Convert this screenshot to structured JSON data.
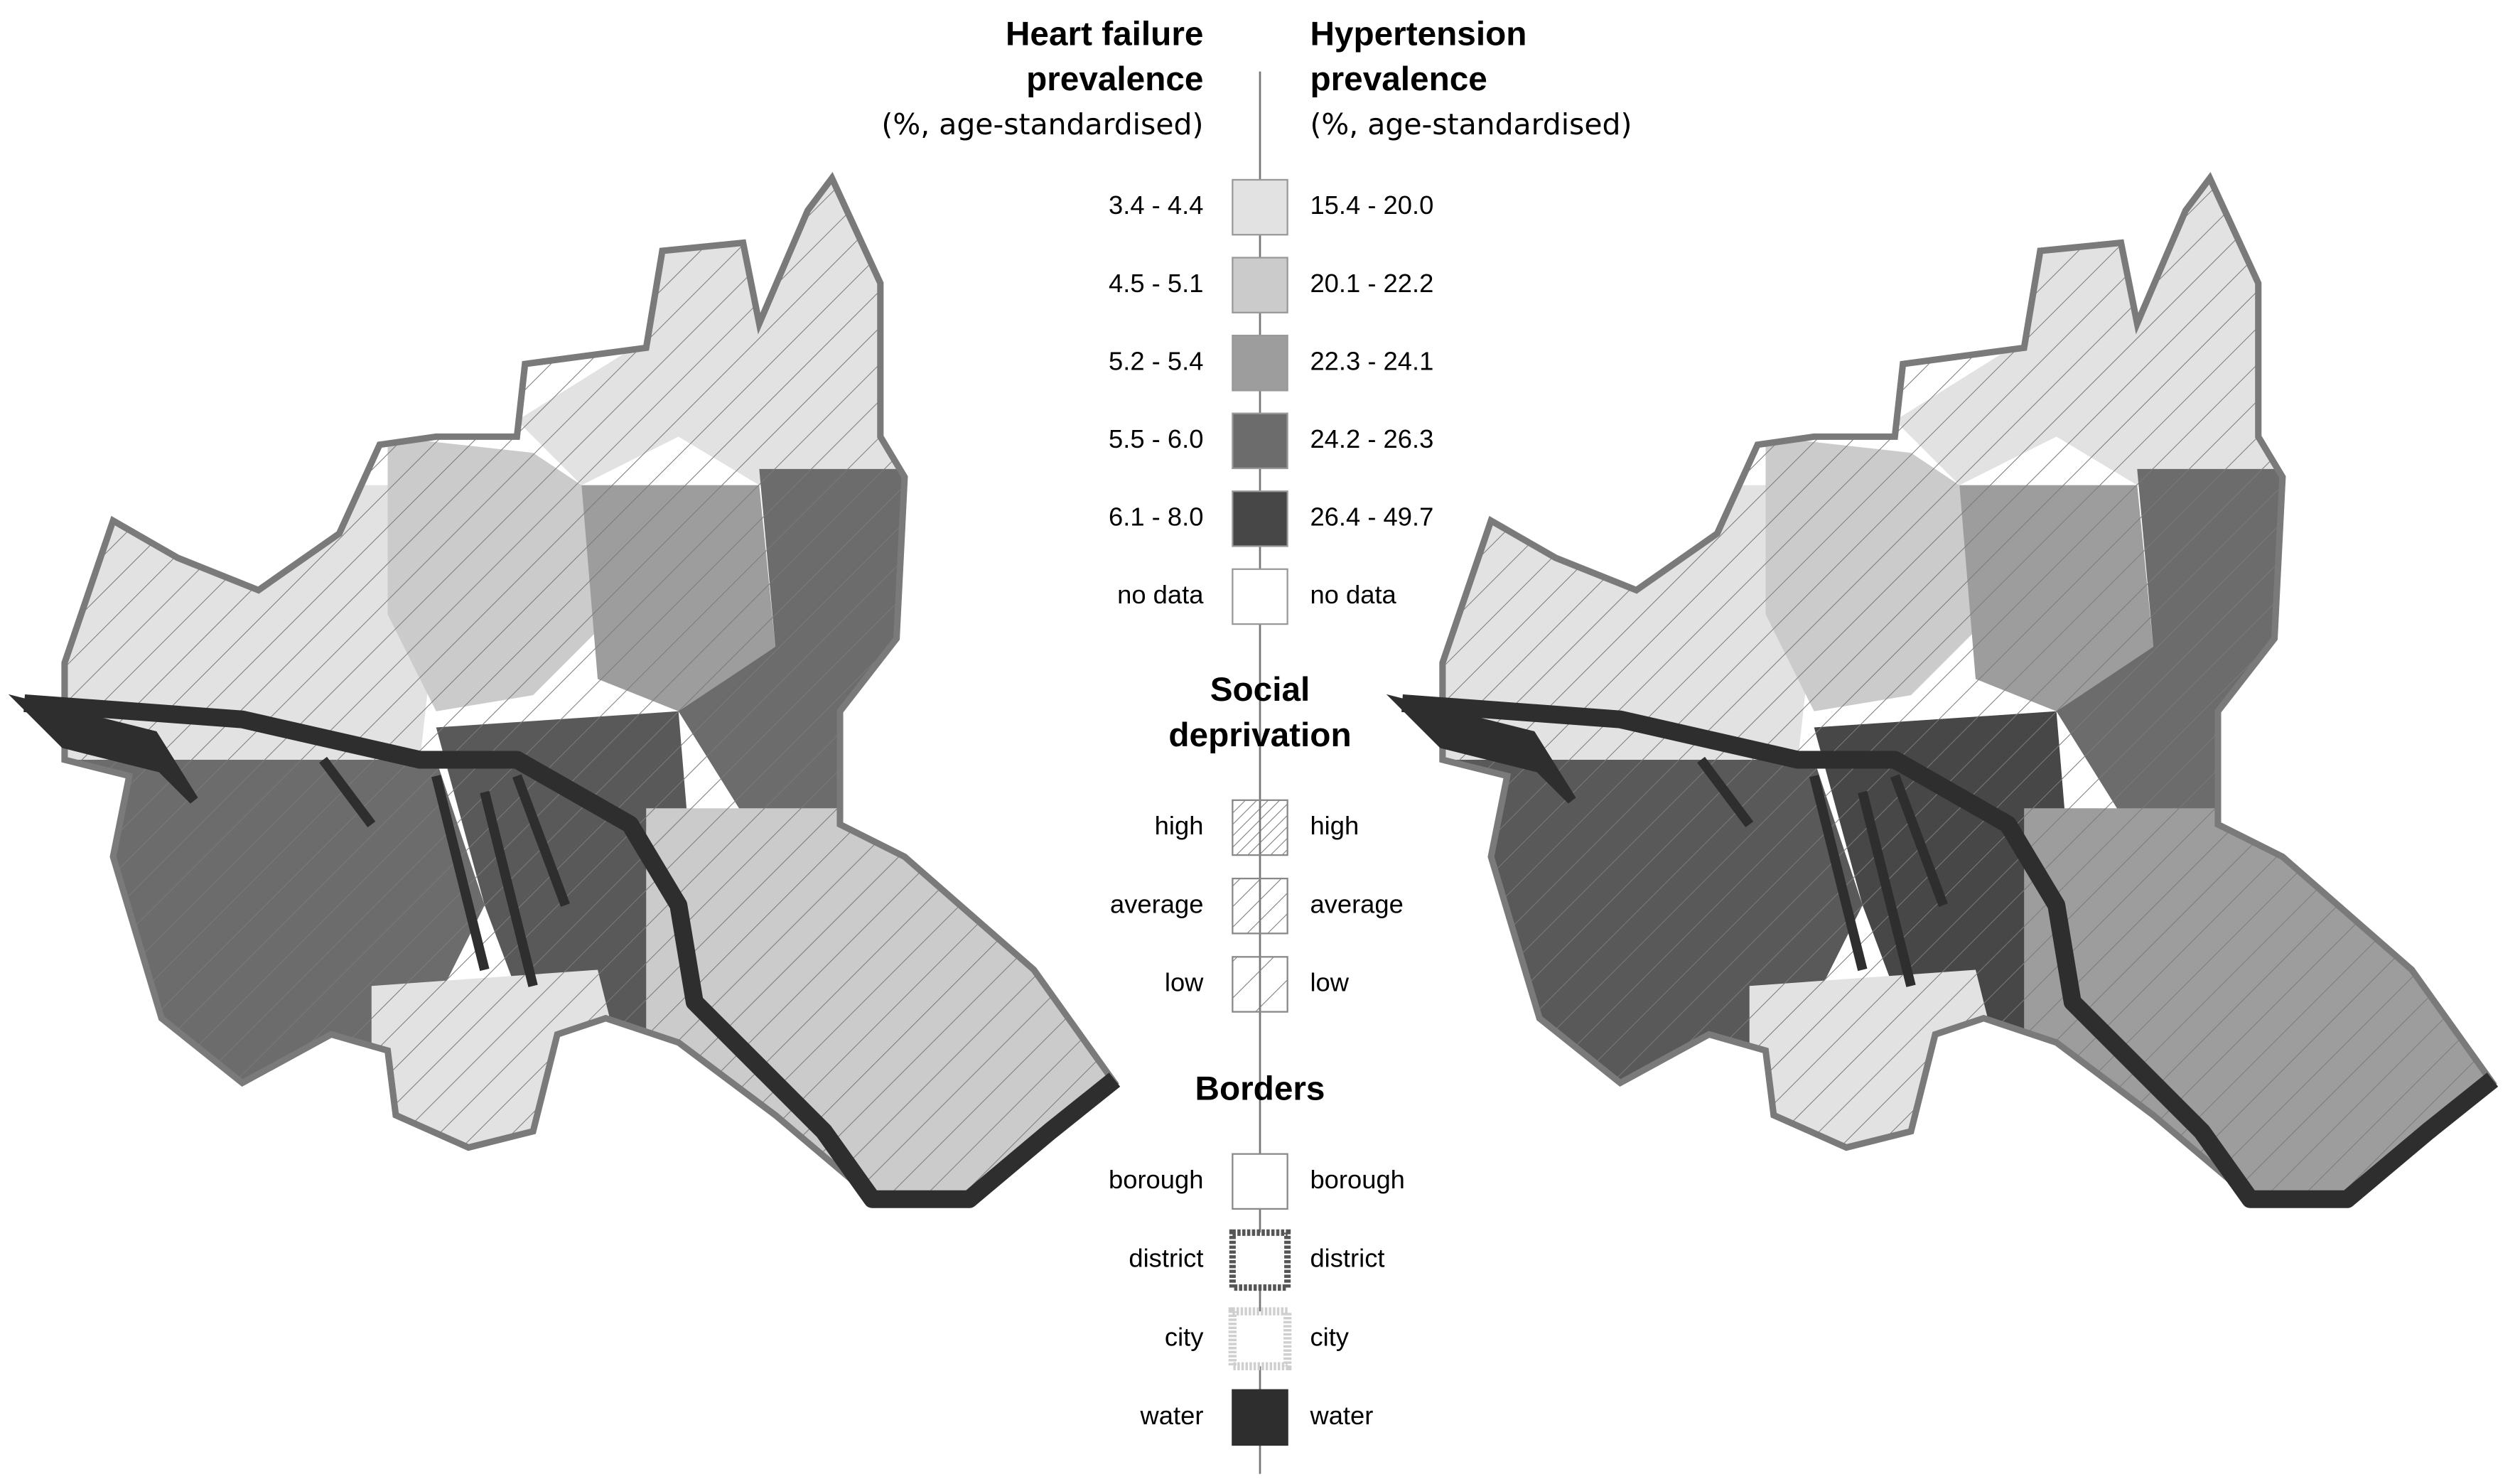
{
  "legend": {
    "heart_failure": {
      "title_lines": [
        "Heart failure",
        "prevalence"
      ],
      "subtitle": "(%, age-standardised)"
    },
    "hypertension": {
      "title_lines": [
        "Hypertension",
        "prevalence"
      ],
      "subtitle": "(%, age-standardised)"
    },
    "prevalence_classes": [
      {
        "heart_failure": "3.4 - 4.4",
        "hypertension": "15.4 - 20.0",
        "fill": "#e2e2e2"
      },
      {
        "heart_failure": "4.5 - 5.1",
        "hypertension": "20.1 - 22.2",
        "fill": "#cbcbcb"
      },
      {
        "heart_failure": "5.2 - 5.4",
        "hypertension": "22.3 - 24.1",
        "fill": "#9d9d9d"
      },
      {
        "heart_failure": "5.5 - 6.0",
        "hypertension": "24.2 - 26.3",
        "fill": "#6c6c6c"
      },
      {
        "heart_failure": "6.1 - 8.0",
        "hypertension": "26.4 - 49.7",
        "fill": "#474747"
      },
      {
        "heart_failure": "no data",
        "hypertension": "no data",
        "fill": "#ffffff"
      }
    ],
    "social_deprivation": {
      "title_lines": [
        "Social",
        "deprivation"
      ],
      "items": [
        {
          "left": "high",
          "right": "high",
          "pattern": "dense"
        },
        {
          "left": "average",
          "right": "average",
          "pattern": "medium"
        },
        {
          "left": "low",
          "right": "low",
          "pattern": "sparse"
        }
      ]
    },
    "borders": {
      "title": "Borders",
      "items": [
        {
          "left": "borough",
          "right": "borough",
          "style": "borough"
        },
        {
          "left": "district",
          "right": "district",
          "style": "district"
        },
        {
          "left": "city",
          "right": "city",
          "style": "city"
        },
        {
          "left": "water",
          "right": "water",
          "style": "water"
        }
      ]
    }
  }
}
